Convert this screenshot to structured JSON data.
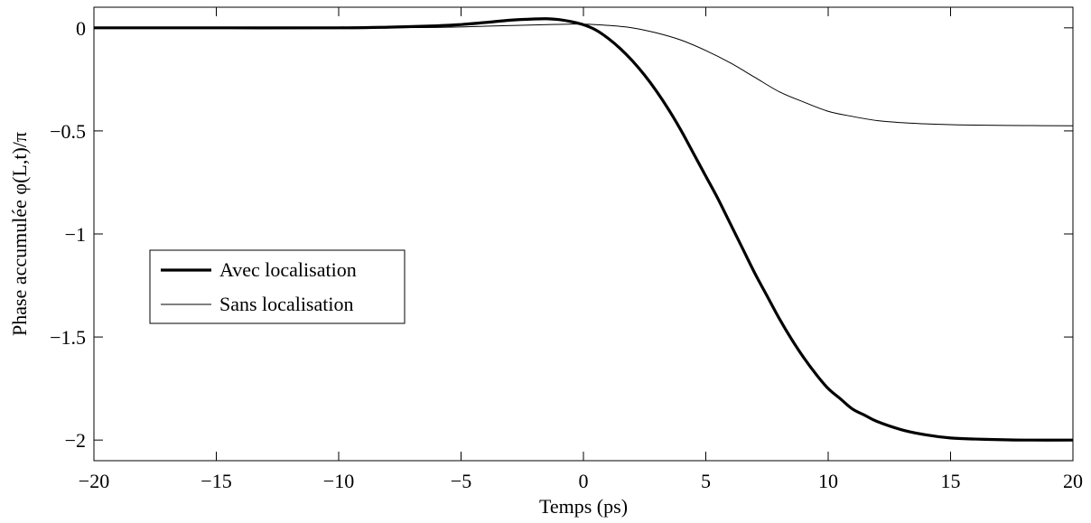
{
  "chart_data": {
    "type": "line",
    "xlabel": "Temps (ps)",
    "ylabel": "Phase accumulée φ(L,t)/π",
    "xlim": [
      -20,
      20
    ],
    "ylim": [
      -2.1,
      0.1
    ],
    "xticks": [
      -20,
      -15,
      -10,
      -5,
      0,
      5,
      10,
      15,
      20
    ],
    "xtick_labels": [
      "−20",
      "−15",
      "−10",
      "−5",
      "0",
      "5",
      "10",
      "15",
      "20"
    ],
    "yticks": [
      0,
      -0.5,
      -1,
      -1.5,
      -2
    ],
    "ytick_labels": [
      "0",
      "−0.5",
      "−1",
      "−1.5",
      "−2"
    ],
    "grid": false,
    "legend_position": "center-left",
    "series": [
      {
        "name": "Avec localisation",
        "color": "#000000",
        "style": "thick",
        "x": [
          -20,
          -15,
          -10,
          -8,
          -6,
          -5,
          -4,
          -3,
          -2,
          -1.5,
          -1,
          -0.5,
          0,
          0.5,
          1,
          1.5,
          2,
          2.5,
          3,
          3.5,
          4,
          4.5,
          5,
          5.5,
          6,
          6.5,
          7,
          7.5,
          8,
          8.5,
          9,
          9.5,
          10,
          10.5,
          11,
          11.5,
          12,
          13,
          14,
          15,
          16,
          17,
          18,
          20
        ],
        "y": [
          0,
          0,
          0,
          0.003,
          0.01,
          0.016,
          0.026,
          0.037,
          0.043,
          0.044,
          0.04,
          0.03,
          0.015,
          -0.01,
          -0.05,
          -0.1,
          -0.16,
          -0.23,
          -0.31,
          -0.4,
          -0.5,
          -0.61,
          -0.72,
          -0.83,
          -0.95,
          -1.07,
          -1.19,
          -1.3,
          -1.41,
          -1.51,
          -1.6,
          -1.68,
          -1.75,
          -1.8,
          -1.85,
          -1.88,
          -1.91,
          -1.95,
          -1.975,
          -1.99,
          -1.995,
          -1.998,
          -2.0,
          -2.0
        ]
      },
      {
        "name": "Sans localisation",
        "color": "#000000",
        "style": "thin",
        "x": [
          -20,
          -10,
          -6,
          -4,
          -2,
          -1,
          0,
          1,
          2,
          3,
          4,
          5,
          6,
          7,
          8,
          9,
          10,
          11,
          12,
          13,
          14,
          15,
          16,
          18,
          20
        ],
        "y": [
          0,
          0,
          0.002,
          0.008,
          0.014,
          0.017,
          0.018,
          0.012,
          0.0,
          -0.025,
          -0.06,
          -0.11,
          -0.17,
          -0.24,
          -0.31,
          -0.36,
          -0.405,
          -0.43,
          -0.45,
          -0.46,
          -0.466,
          -0.47,
          -0.472,
          -0.474,
          -0.475
        ]
      }
    ]
  }
}
